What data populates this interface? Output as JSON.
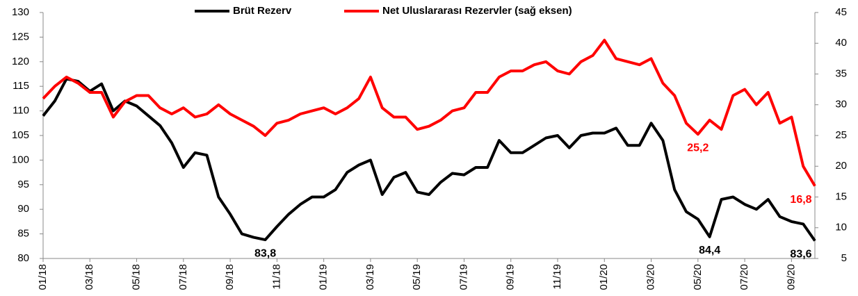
{
  "chart_data": {
    "type": "line",
    "categories": [
      "01/18",
      null,
      null,
      null,
      "03/18",
      null,
      null,
      null,
      "05/18",
      null,
      null,
      null,
      "07/18",
      null,
      null,
      null,
      "09/18",
      null,
      null,
      null,
      "11/18",
      null,
      null,
      null,
      "01/19",
      null,
      null,
      null,
      "03/19",
      null,
      null,
      null,
      "05/19",
      null,
      null,
      null,
      "07/19",
      null,
      null,
      null,
      "09/19",
      null,
      null,
      null,
      "11/19",
      null,
      null,
      null,
      "01/20",
      null,
      null,
      null,
      "03/20",
      null,
      null,
      null,
      "05/20",
      null,
      null,
      null,
      "07/20",
      null,
      null,
      null,
      "09/20",
      null,
      null
    ],
    "series": [
      {
        "name": "Brüt Rezerv",
        "color": "#000000",
        "axis": "y",
        "values": [
          109,
          112,
          116.5,
          116,
          114,
          115.5,
          110,
          112,
          111,
          109,
          107,
          103.5,
          98.5,
          101.5,
          101,
          92.5,
          89,
          85,
          84.3,
          83.8,
          86.5,
          89,
          91,
          92.5,
          92.5,
          94,
          97.5,
          99,
          100,
          93,
          96.5,
          97.5,
          93.5,
          93,
          95.5,
          97.3,
          97,
          98.5,
          98.5,
          104,
          101.5,
          101.5,
          103,
          104.5,
          105,
          102.5,
          105,
          105.5,
          105.5,
          106.5,
          103,
          103,
          107.5,
          104,
          94,
          89.5,
          88,
          84.4,
          92,
          92.5,
          91,
          90,
          92,
          88.5,
          87.5,
          87,
          83.6
        ],
        "value_labels": [
          null,
          null,
          null,
          null,
          null,
          null,
          null,
          null,
          null,
          null,
          null,
          null,
          null,
          null,
          null,
          null,
          null,
          null,
          null,
          "83,8",
          null,
          null,
          null,
          null,
          null,
          null,
          null,
          null,
          null,
          null,
          null,
          null,
          null,
          null,
          null,
          null,
          null,
          null,
          null,
          null,
          null,
          null,
          null,
          null,
          null,
          null,
          null,
          null,
          null,
          null,
          null,
          null,
          null,
          null,
          null,
          null,
          null,
          "84,4",
          null,
          null,
          null,
          null,
          null,
          null,
          null,
          null,
          "83,6"
        ]
      },
      {
        "name": "Net Uluslararası Rezervler (sağ eksen)",
        "color": "#ff0000",
        "axis": "y2",
        "values": [
          31,
          33,
          34.5,
          33.5,
          32,
          32,
          28,
          30.5,
          31.5,
          31.5,
          29.5,
          28.5,
          29.5,
          28,
          28.5,
          30,
          28.5,
          27.5,
          26.5,
          25,
          27,
          27.5,
          28.5,
          29,
          29.5,
          28.5,
          29.5,
          31,
          34.5,
          29.5,
          28,
          28,
          26,
          26.5,
          27.5,
          29,
          29.5,
          32,
          32,
          34.5,
          35.5,
          35.5,
          36.5,
          37,
          35.5,
          35,
          37,
          38,
          40.5,
          37.5,
          37,
          36.5,
          37.5,
          33.5,
          31.5,
          27,
          25.2,
          27.5,
          26,
          31.5,
          32.5,
          30,
          32,
          27,
          28,
          20,
          16.8
        ],
        "value_labels": [
          null,
          null,
          null,
          null,
          null,
          null,
          null,
          null,
          null,
          null,
          null,
          null,
          null,
          null,
          null,
          null,
          null,
          null,
          null,
          null,
          null,
          null,
          null,
          null,
          null,
          null,
          null,
          null,
          null,
          null,
          null,
          null,
          null,
          null,
          null,
          null,
          null,
          null,
          null,
          null,
          null,
          null,
          null,
          null,
          null,
          null,
          null,
          null,
          null,
          null,
          null,
          null,
          null,
          null,
          null,
          null,
          "25,2",
          null,
          null,
          null,
          null,
          null,
          null,
          null,
          null,
          null,
          "16,8"
        ]
      }
    ],
    "ylim": [
      80,
      130
    ],
    "yticks": [
      80,
      85,
      90,
      95,
      100,
      105,
      110,
      115,
      120,
      125,
      130
    ],
    "y2lim": [
      5,
      45
    ],
    "y2ticks": [
      5,
      10,
      15,
      20,
      25,
      30,
      35,
      40,
      45
    ]
  }
}
